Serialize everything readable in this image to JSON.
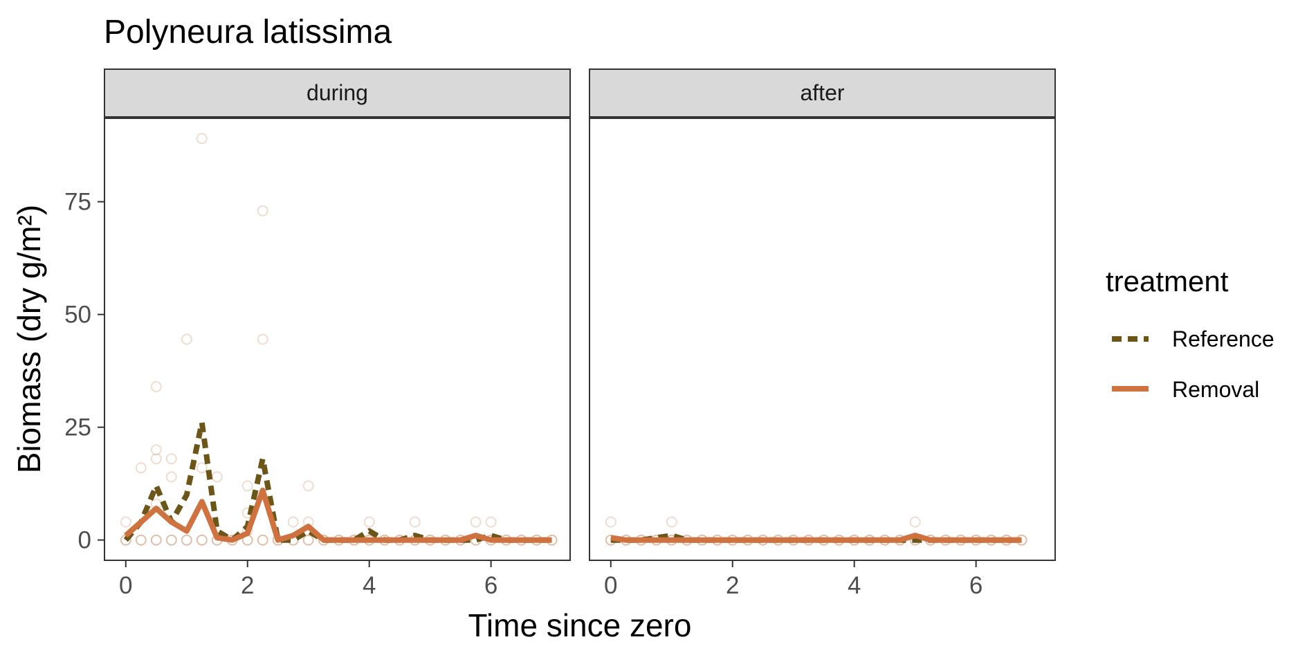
{
  "chart_data": {
    "type": "line",
    "title": "Polyneura latissima",
    "xlabel": "Time since zero",
    "ylabel": "Biomass (dry g/m²)",
    "facets": [
      "during",
      "after"
    ],
    "xlim": [
      -0.35,
      7.3
    ],
    "ylim": [
      -4.5,
      93.5
    ],
    "x_ticks": [
      0,
      2,
      4,
      6
    ],
    "y_ticks": [
      0,
      25,
      50,
      75
    ],
    "legend": {
      "title": "treatment",
      "position": "right",
      "entries": [
        "Reference",
        "Removal"
      ]
    },
    "colors": {
      "Reference": "#6b5618",
      "Removal": "#cf7240",
      "points": "#d8b49a",
      "strip_bg": "#d9d9d9",
      "panel_border": "#333333"
    },
    "series": [
      {
        "name": "Reference",
        "panel": "during",
        "x": [
          0,
          0.25,
          0.5,
          0.75,
          1,
          1.25,
          1.5,
          1.75,
          2,
          2.25,
          2.5,
          2.75,
          3,
          3.25,
          3.5,
          3.75,
          4,
          4.25,
          4.5,
          4.75,
          5,
          5.25,
          5.5,
          5.75,
          6,
          6.25,
          6.5,
          6.75,
          7
        ],
        "values": [
          0,
          4,
          12,
          4,
          10,
          26,
          2,
          0,
          3,
          18,
          0,
          0,
          2,
          0,
          0,
          0,
          2,
          0,
          0,
          1,
          0,
          0,
          0,
          0,
          1,
          0,
          0,
          0,
          0
        ]
      },
      {
        "name": "Removal",
        "panel": "during",
        "x": [
          0,
          0.25,
          0.5,
          0.75,
          1,
          1.25,
          1.5,
          1.75,
          2,
          2.25,
          2.5,
          2.75,
          3,
          3.25,
          3.5,
          3.75,
          4,
          4.25,
          4.5,
          4.75,
          5,
          5.25,
          5.5,
          5.75,
          6,
          6.25,
          6.5,
          6.75,
          7
        ],
        "values": [
          1,
          4,
          7,
          4,
          2,
          8.5,
          0.5,
          0,
          1.5,
          11,
          0,
          1,
          3,
          0,
          0,
          0,
          0,
          0,
          0,
          0,
          0,
          0,
          0,
          1,
          0,
          0,
          0,
          0,
          0
        ]
      },
      {
        "name": "Reference",
        "panel": "after",
        "x": [
          0,
          0.25,
          0.5,
          0.75,
          1,
          1.25,
          1.5,
          1.75,
          2,
          2.25,
          2.5,
          2.75,
          3,
          3.25,
          3.5,
          3.75,
          4,
          4.25,
          4.5,
          4.75,
          5,
          5.25,
          5.5,
          5.75,
          6,
          6.25,
          6.5,
          6.75
        ],
        "values": [
          0,
          0,
          0,
          0.5,
          1,
          0,
          0,
          0,
          0,
          0,
          0,
          0,
          0,
          0,
          0,
          0,
          0,
          0,
          0,
          0,
          0,
          0,
          0,
          0,
          0,
          0,
          0,
          0
        ]
      },
      {
        "name": "Removal",
        "panel": "after",
        "x": [
          0,
          0.25,
          0.5,
          0.75,
          1,
          1.25,
          1.5,
          1.75,
          2,
          2.25,
          2.5,
          2.75,
          3,
          3.25,
          3.5,
          3.75,
          4,
          4.25,
          4.5,
          4.75,
          5,
          5.25,
          5.5,
          5.75,
          6,
          6.25,
          6.5,
          6.75
        ],
        "values": [
          0.5,
          0,
          0,
          0,
          0,
          0,
          0,
          0,
          0,
          0,
          0,
          0,
          0,
          0,
          0,
          0,
          0,
          0,
          0,
          0,
          1,
          0,
          0,
          0,
          0,
          0,
          0,
          0
        ]
      }
    ],
    "points": [
      {
        "panel": "during",
        "x": [
          0,
          0.25,
          0.5,
          0.75,
          1,
          1.25,
          1.5,
          1.75,
          2,
          2.25,
          2.5,
          2.75,
          3,
          3.25,
          3.5,
          3.75,
          4,
          4.25,
          4.5,
          4.75,
          5,
          5.25,
          5.5,
          5.75,
          6,
          6.25,
          6.5,
          6.75,
          7,
          0,
          0.25,
          0.5,
          0.5,
          0.5,
          0.5,
          0.75,
          0.75,
          1,
          1.25,
          1.25,
          1.5,
          2,
          2,
          2,
          2.25,
          2.25,
          2.75,
          3,
          3,
          4,
          4.75,
          5.75,
          6
        ],
        "y": [
          0,
          0,
          0,
          0,
          0,
          0,
          0,
          0,
          0,
          0,
          0,
          0,
          0,
          0,
          0,
          0,
          0,
          0,
          0,
          0,
          0,
          0,
          0,
          0,
          0,
          0,
          0,
          0,
          0,
          4,
          16,
          34,
          20,
          18,
          8,
          18,
          14,
          44.5,
          89,
          16,
          14,
          12,
          6,
          2,
          73,
          44.5,
          4,
          12,
          4,
          4,
          4,
          4,
          4
        ]
      },
      {
        "panel": "after",
        "x": [
          0,
          0.25,
          0.5,
          0.75,
          1,
          1.25,
          1.5,
          1.75,
          2,
          2.25,
          2.5,
          2.75,
          3,
          3.25,
          3.5,
          3.75,
          4,
          4.25,
          4.5,
          4.75,
          5,
          5.25,
          5.5,
          5.75,
          6,
          6.25,
          6.5,
          6.75,
          0,
          1,
          5
        ],
        "y": [
          0,
          0,
          0,
          0,
          0,
          0,
          0,
          0,
          0,
          0,
          0,
          0,
          0,
          0,
          0,
          0,
          0,
          0,
          0,
          0,
          0,
          0,
          0,
          0,
          0,
          0,
          0,
          0,
          4,
          4,
          4
        ]
      }
    ]
  }
}
